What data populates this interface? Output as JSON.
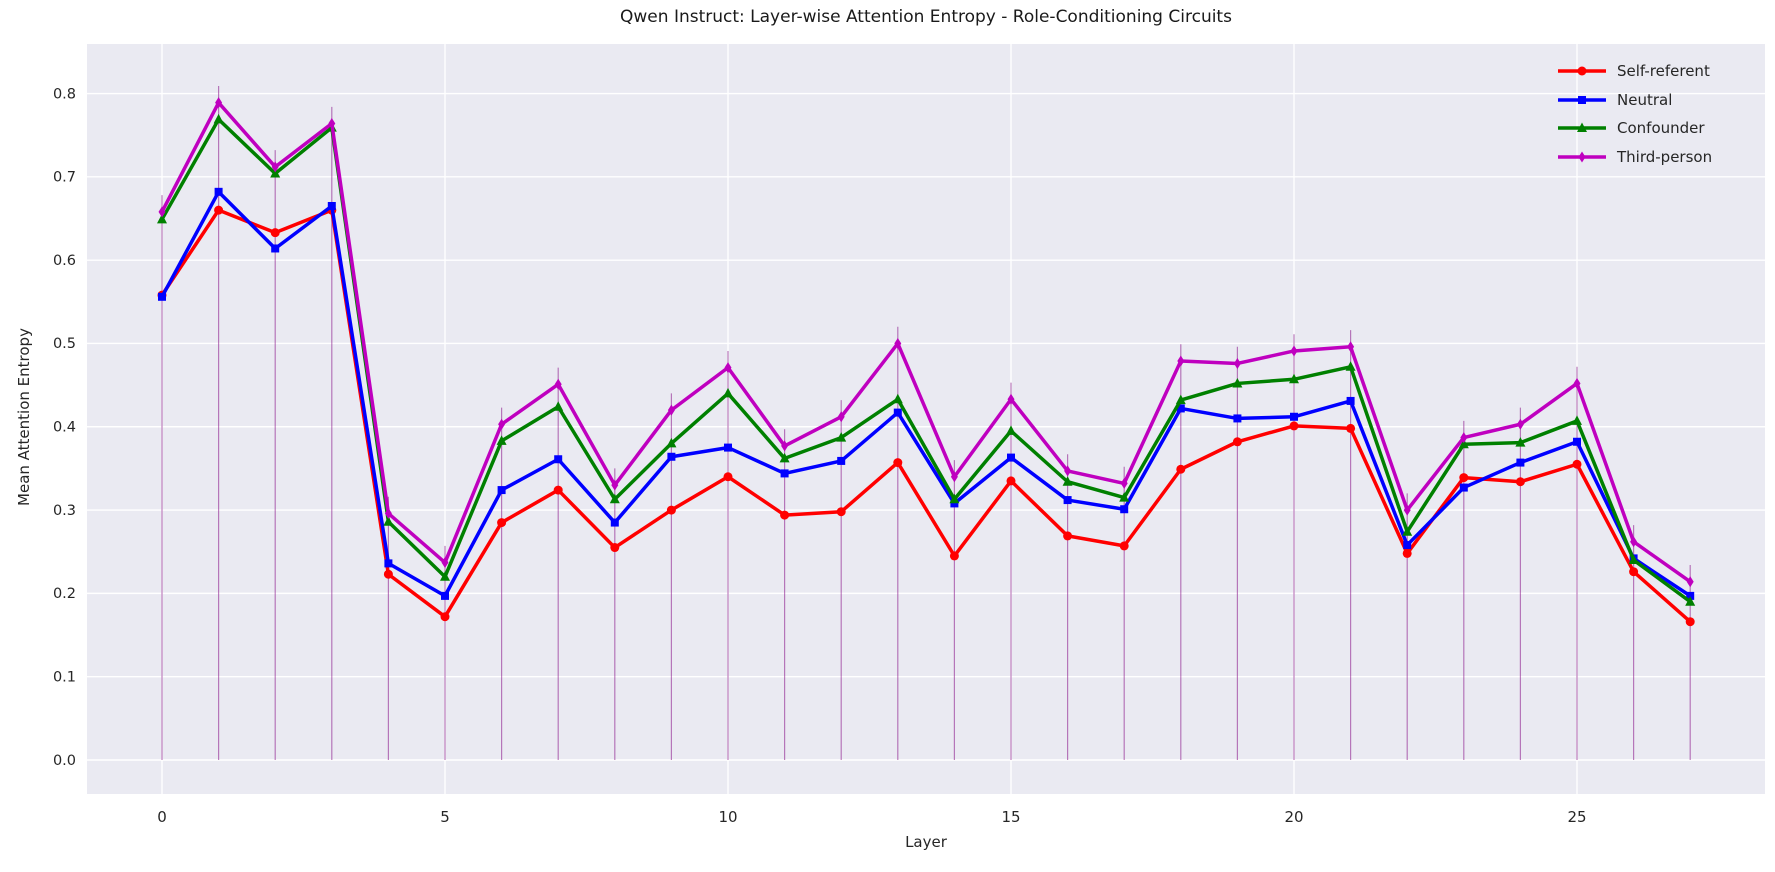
{
  "chart_data": {
    "type": "line",
    "title": "Qwen Instruct: Layer-wise Attention Entropy - Role-Conditioning Circuits",
    "xlabel": "Layer",
    "ylabel": "Mean Attention Entropy",
    "x": [
      0,
      1,
      2,
      3,
      4,
      5,
      6,
      7,
      8,
      9,
      10,
      11,
      12,
      13,
      14,
      15,
      16,
      17,
      18,
      19,
      20,
      21,
      22,
      23,
      24,
      25,
      26,
      27
    ],
    "xticks": [
      0,
      5,
      10,
      15,
      20,
      25
    ],
    "yticks": [
      0.0,
      0.1,
      0.2,
      0.3,
      0.4,
      0.5,
      0.6,
      0.7,
      0.8
    ],
    "xlim": [
      -1.33,
      28.33
    ],
    "ylim": [
      -0.041,
      0.864
    ],
    "grid": true,
    "legend_position": "upper right",
    "axes_background": "#eaeaf2",
    "grid_color": "#ffffff",
    "text_color": "#262626",
    "error_bars": {
      "color": "rgba(128,0,128,0.5)",
      "upper": 0.02,
      "lower_extends_to": 0
    },
    "series": [
      {
        "name": "Self-referent",
        "color": "#ff0000",
        "marker": "circle",
        "values": [
          0.558,
          0.66,
          0.633,
          0.66,
          0.223,
          0.172,
          0.285,
          0.324,
          0.255,
          0.3,
          0.34,
          0.294,
          0.298,
          0.357,
          0.245,
          0.335,
          0.269,
          0.257,
          0.349,
          0.382,
          0.401,
          0.398,
          0.248,
          0.339,
          0.334,
          0.355,
          0.226,
          0.166
        ]
      },
      {
        "name": "Neutral",
        "color": "#0000ff",
        "marker": "square",
        "values": [
          0.556,
          0.682,
          0.614,
          0.665,
          0.236,
          0.197,
          0.324,
          0.361,
          0.285,
          0.364,
          0.375,
          0.344,
          0.359,
          0.417,
          0.308,
          0.363,
          0.312,
          0.301,
          0.422,
          0.41,
          0.412,
          0.431,
          0.258,
          0.327,
          0.357,
          0.382,
          0.242,
          0.197
        ]
      },
      {
        "name": "Confounder",
        "color": "#008000",
        "marker": "triangle",
        "values": [
          0.649,
          0.769,
          0.704,
          0.759,
          0.286,
          0.22,
          0.383,
          0.424,
          0.313,
          0.38,
          0.44,
          0.362,
          0.387,
          0.433,
          0.313,
          0.395,
          0.334,
          0.315,
          0.432,
          0.452,
          0.457,
          0.472,
          0.274,
          0.379,
          0.381,
          0.407,
          0.24,
          0.19
        ]
      },
      {
        "name": "Third-person",
        "color": "#bf00bf",
        "marker": "diamond",
        "values": [
          0.658,
          0.789,
          0.712,
          0.764,
          0.296,
          0.237,
          0.403,
          0.451,
          0.33,
          0.42,
          0.471,
          0.377,
          0.412,
          0.5,
          0.34,
          0.433,
          0.347,
          0.332,
          0.479,
          0.476,
          0.491,
          0.496,
          0.3,
          0.387,
          0.403,
          0.452,
          0.262,
          0.214
        ]
      }
    ]
  }
}
